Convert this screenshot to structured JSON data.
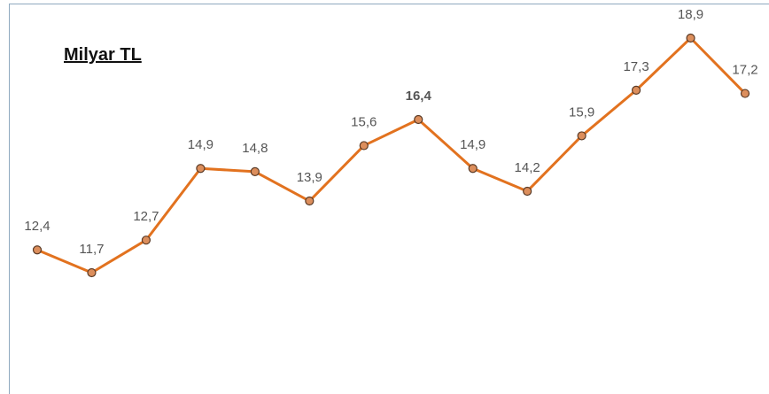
{
  "chart_data": {
    "type": "line",
    "title": "Milyar TL",
    "categories": [
      null,
      null,
      null,
      null,
      null,
      null,
      null,
      null,
      null,
      null,
      null,
      null,
      null,
      null
    ],
    "series": [
      {
        "color": "#e2721f",
        "values": [
          12.4,
          11.7,
          12.7,
          14.9,
          14.8,
          13.9,
          15.6,
          16.4,
          14.9,
          14.2,
          15.9,
          17.3,
          18.9,
          17.2
        ],
        "value_labels": [
          "12,4",
          "11,7",
          "12,7",
          "14,9",
          "14,8",
          "13,9",
          "15,6",
          "16,4",
          "14,9",
          "14,2",
          "15,9",
          "17,3",
          "18,9",
          "17,2"
        ]
      }
    ]
  }
}
